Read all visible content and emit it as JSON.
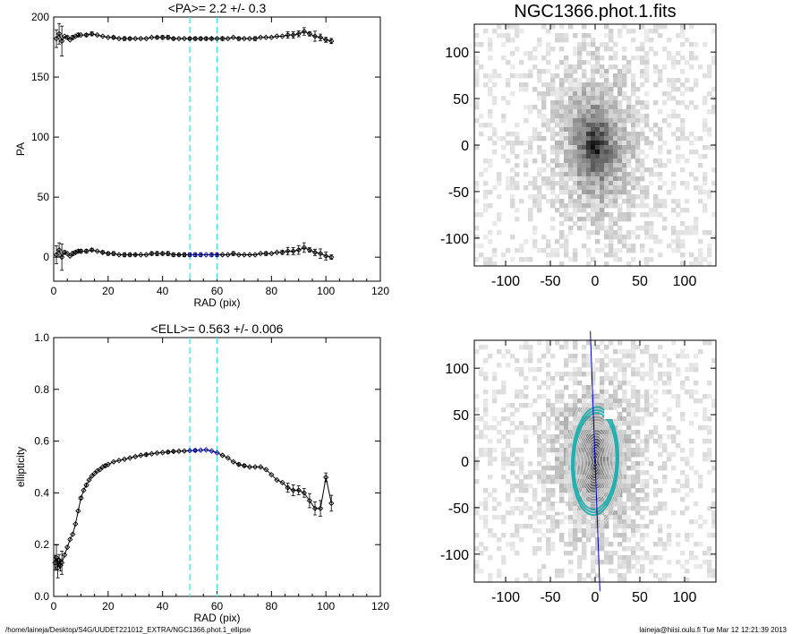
{
  "figure": {
    "footer_left": "/home/laineja/Desktop/S4G/UUDET221012_EXTRA/NGC1366.phot.1_ellipse",
    "footer_right": "laineja@hiisi.oulu.fi  Tue Mar 12 12:21:39 2013"
  },
  "colors": {
    "line": "#000000",
    "marker": "#000000",
    "band": "#40e0e0",
    "highlight": "#0000cc",
    "contour": "#dddddd",
    "contour_mid": "#20b0b0"
  },
  "chart_data": [
    {
      "type": "scatter",
      "title": "<PA>=   2.2 +/-   0.3",
      "xlabel": "RAD (pix)",
      "ylabel": "PA",
      "xlim": [
        0,
        120
      ],
      "ylim": [
        -20,
        200
      ],
      "xticks": [
        "0",
        "20",
        "40",
        "60",
        "80",
        "100",
        "120"
      ],
      "yticks": [
        "0",
        "50",
        "100",
        "150",
        "200"
      ],
      "xtick_values": [
        0,
        20,
        40,
        60,
        80,
        100,
        120
      ],
      "ytick_values": [
        0,
        50,
        100,
        150,
        200
      ],
      "vlines": [
        50,
        60
      ],
      "grid": false,
      "series": [
        {
          "x": [
            1,
            2,
            3,
            4,
            5,
            6,
            7,
            8,
            9,
            10,
            12,
            14,
            16,
            18,
            20,
            22,
            24,
            26,
            28,
            30,
            32,
            34,
            36,
            38,
            40,
            42,
            44,
            46,
            48,
            50,
            52,
            54,
            56,
            58,
            60,
            62,
            64,
            66,
            68,
            70,
            72,
            74,
            76,
            78,
            80,
            82,
            84,
            86,
            88,
            90,
            92,
            94,
            96,
            98,
            100,
            102
          ],
          "y": [
            182,
            186,
            180,
            184,
            183,
            181,
            183,
            184,
            185,
            185,
            185,
            186,
            185,
            184,
            183,
            183,
            182,
            182,
            182,
            182,
            182,
            182,
            183,
            183,
            183,
            183,
            182,
            182,
            182,
            182,
            182,
            182,
            182,
            182,
            182,
            182,
            182,
            183,
            182,
            182,
            182,
            182,
            183,
            183,
            183,
            184,
            184,
            185,
            185,
            186,
            188,
            186,
            184,
            183,
            181,
            180
          ]
        },
        {
          "x": [
            1,
            2,
            3,
            4,
            5,
            6,
            7,
            8,
            9,
            10,
            12,
            14,
            16,
            18,
            20,
            22,
            24,
            26,
            28,
            30,
            32,
            34,
            36,
            38,
            40,
            42,
            44,
            46,
            48,
            50,
            52,
            54,
            56,
            58,
            60,
            62,
            64,
            66,
            68,
            70,
            72,
            74,
            76,
            78,
            80,
            82,
            84,
            86,
            88,
            90,
            92,
            94,
            96,
            98,
            100,
            102
          ],
          "y": [
            2,
            6,
            0,
            4,
            3,
            1,
            3,
            4,
            5,
            5,
            5,
            6,
            5,
            4,
            3,
            3,
            2,
            2,
            2,
            2,
            2,
            2,
            3,
            3,
            3,
            3,
            2,
            2,
            2,
            2,
            2,
            2,
            2,
            2,
            2,
            2,
            2,
            3,
            2,
            2,
            2,
            2,
            3,
            3,
            3,
            4,
            4,
            5,
            5,
            6,
            8,
            6,
            4,
            3,
            1,
            0
          ]
        }
      ],
      "highlight_range": [
        50,
        60
      ]
    },
    {
      "type": "scatter",
      "title": "<ELL>= 0.563 +/-  0.006",
      "xlabel": "RAD (pix)",
      "ylabel": "ellipticity",
      "xlim": [
        0,
        120
      ],
      "ylim": [
        0.0,
        1.0
      ],
      "xticks": [
        "0",
        "20",
        "40",
        "60",
        "80",
        "100",
        "120"
      ],
      "yticks": [
        "0.0",
        "0.2",
        "0.4",
        "0.6",
        "0.8",
        "1.0"
      ],
      "xtick_values": [
        0,
        20,
        40,
        60,
        80,
        100,
        120
      ],
      "ytick_values": [
        0.0,
        0.2,
        0.4,
        0.6,
        0.8,
        1.0
      ],
      "vlines": [
        50,
        60
      ],
      "grid": false,
      "series": [
        {
          "x": [
            0.5,
            1,
            1.5,
            2,
            2.5,
            3,
            4,
            5,
            6,
            7,
            8,
            9,
            10,
            11,
            12,
            13,
            14,
            15,
            16,
            17,
            18,
            19,
            20,
            22,
            24,
            26,
            28,
            30,
            32,
            34,
            36,
            38,
            40,
            42,
            44,
            46,
            48,
            50,
            52,
            54,
            56,
            58,
            60,
            62,
            64,
            66,
            68,
            70,
            72,
            74,
            76,
            78,
            80,
            82,
            84,
            86,
            88,
            90,
            92,
            94,
            96,
            98,
            100,
            102
          ],
          "y": [
            0.13,
            0.15,
            0.11,
            0.14,
            0.12,
            0.13,
            0.16,
            0.19,
            0.22,
            0.24,
            0.28,
            0.33,
            0.38,
            0.41,
            0.43,
            0.45,
            0.465,
            0.475,
            0.485,
            0.49,
            0.5,
            0.505,
            0.51,
            0.52,
            0.525,
            0.53,
            0.535,
            0.54,
            0.545,
            0.548,
            0.551,
            0.554,
            0.556,
            0.558,
            0.56,
            0.561,
            0.562,
            0.563,
            0.564,
            0.565,
            0.566,
            0.562,
            0.555,
            0.545,
            0.535,
            0.52,
            0.51,
            0.505,
            0.5,
            0.5,
            0.5,
            0.49,
            0.47,
            0.45,
            0.44,
            0.42,
            0.41,
            0.41,
            0.4,
            0.37,
            0.34,
            0.34,
            0.46,
            0.36
          ]
        }
      ],
      "highlight_range": [
        50,
        60
      ]
    },
    {
      "type": "heatmap",
      "title": "NGC1366.phot.1.fits",
      "xlabel": "",
      "ylabel": "",
      "xlim": [
        -135,
        135
      ],
      "ylim": [
        -130,
        130
      ],
      "xticks": [
        "-100",
        "-50",
        "0",
        "50",
        "100"
      ],
      "yticks": [
        "-100",
        "-50",
        "0",
        "50",
        "100"
      ],
      "xtick_values": [
        -100,
        -50,
        0,
        50,
        100
      ],
      "ytick_values": [
        -100,
        -50,
        0,
        50,
        100
      ],
      "source": {
        "center": [
          0,
          0
        ],
        "semi_major": 55,
        "semi_minor": 30,
        "pa_deg": 2.2
      }
    },
    {
      "type": "heatmap",
      "title": "",
      "xlabel": "",
      "ylabel": "",
      "xlim": [
        -135,
        135
      ],
      "ylim": [
        -130,
        130
      ],
      "xticks": [
        "-100",
        "-50",
        "0",
        "50",
        "100"
      ],
      "yticks": [
        "-100",
        "-50",
        "0",
        "50",
        "100"
      ],
      "xtick_values": [
        -100,
        -50,
        0,
        50,
        100
      ],
      "ytick_values": [
        -100,
        -50,
        0,
        50,
        100
      ],
      "source": {
        "center": [
          0,
          0
        ],
        "semi_major": 55,
        "semi_minor": 30,
        "pa_deg": 2.2
      },
      "contours": {
        "max_sma": 75,
        "ellipticity": 0.55,
        "pa_deg": 2.2,
        "highlight_sma": [
          50,
          60
        ]
      },
      "major_axis_line": true
    }
  ]
}
